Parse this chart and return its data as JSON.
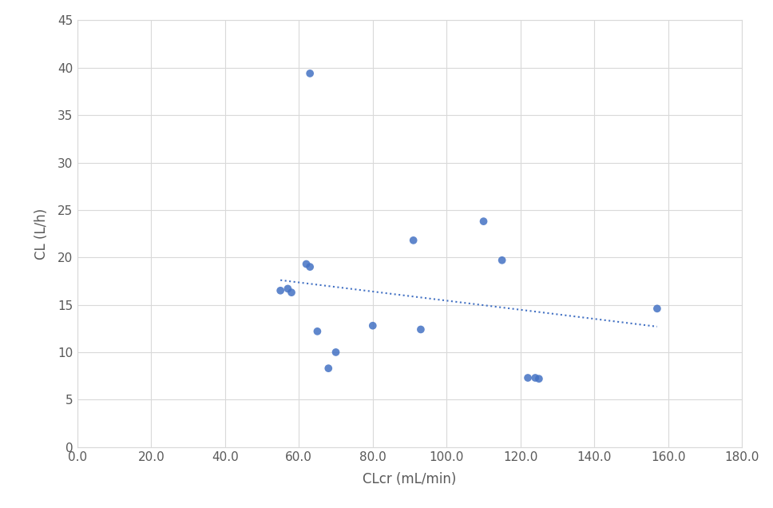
{
  "x_data": [
    55,
    57,
    58,
    62,
    63,
    63,
    65,
    68,
    70,
    80,
    91,
    93,
    110,
    115,
    122,
    124,
    125,
    157
  ],
  "y_data": [
    16.5,
    16.7,
    16.3,
    19.3,
    19.0,
    39.4,
    12.2,
    8.3,
    10.0,
    12.8,
    21.8,
    12.4,
    23.8,
    19.7,
    7.3,
    7.3,
    7.2,
    14.6
  ],
  "trendline_x": [
    55,
    157
  ],
  "trendline_y": [
    17.6,
    12.7
  ],
  "dot_color": "#4472c4",
  "trendline_color": "#4472c4",
  "xlabel": "CLcr (mL/min)",
  "ylabel": "CL (L/h)",
  "xlim": [
    0.0,
    180.0
  ],
  "ylim": [
    0,
    45
  ],
  "xticks": [
    0.0,
    20.0,
    40.0,
    60.0,
    80.0,
    100.0,
    120.0,
    140.0,
    160.0,
    180.0
  ],
  "yticks": [
    0,
    5,
    10,
    15,
    20,
    25,
    30,
    35,
    40,
    45
  ],
  "grid_color": "#d9d9d9",
  "background_color": "#ffffff",
  "plot_bg_color": "#ffffff",
  "tick_color": "#595959",
  "label_color": "#595959",
  "spine_color": "#d9d9d9",
  "marker_size": 7,
  "trendline_linewidth": 1.5,
  "xlabel_fontsize": 12,
  "ylabel_fontsize": 12,
  "tick_fontsize": 11
}
